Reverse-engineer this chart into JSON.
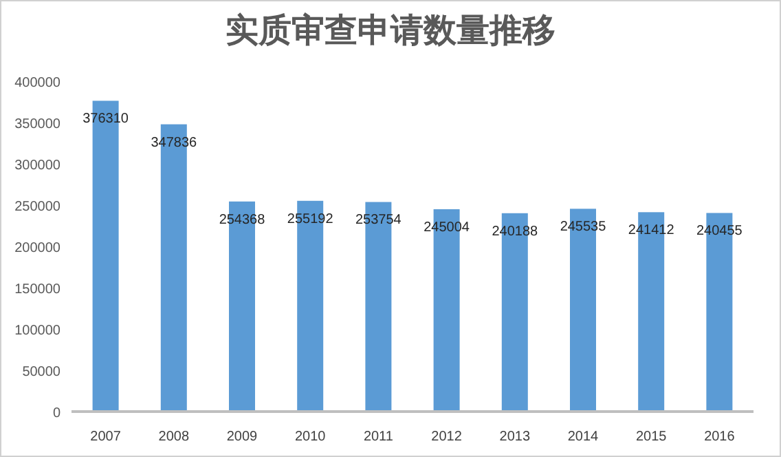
{
  "chart_data": {
    "type": "bar",
    "title": "实质审查申请数量推移",
    "categories": [
      "2007",
      "2008",
      "2009",
      "2010",
      "2011",
      "2012",
      "2013",
      "2014",
      "2015",
      "2016"
    ],
    "values": [
      376310,
      347836,
      254368,
      255192,
      253754,
      245004,
      240188,
      245535,
      241412,
      240455
    ],
    "color": "#5b9bd5",
    "ylim": [
      0,
      400000
    ],
    "yticks": [
      0,
      50000,
      100000,
      150000,
      200000,
      250000,
      300000,
      350000,
      400000
    ],
    "data_labels": true
  }
}
